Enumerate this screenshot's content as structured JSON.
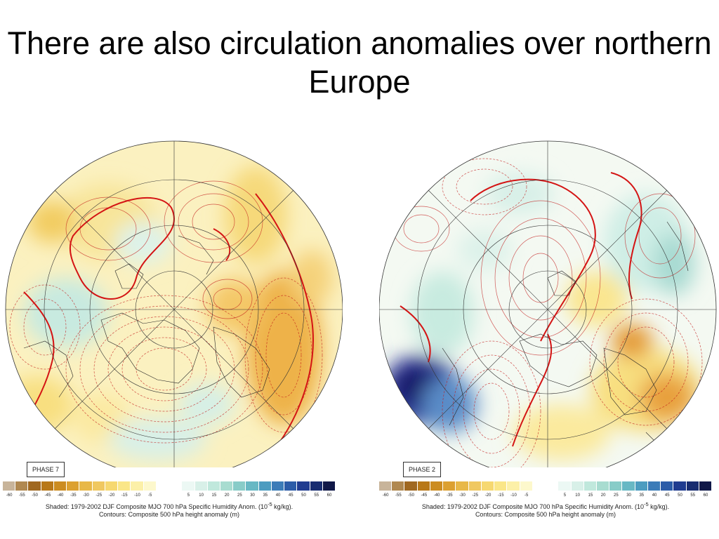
{
  "slide": {
    "title": "There are also circulation anomalies over northern Europe"
  },
  "colors": {
    "background": "#ffffff",
    "contour_line": "#c21818",
    "zero_contour": "#d41414",
    "coastline": "#222222",
    "graticule": "#333333"
  },
  "colorbar": {
    "tick_labels": [
      "-60",
      "-55",
      "-50",
      "-45",
      "-40",
      "-35",
      "-30",
      "-25",
      "-20",
      "-15",
      "-10",
      "-5",
      "",
      "",
      "5",
      "10",
      "15",
      "20",
      "25",
      "30",
      "35",
      "40",
      "45",
      "50",
      "55",
      "60"
    ],
    "swatch_colors": [
      "#c8b49a",
      "#b08850",
      "#a06820",
      "#b87818",
      "#cc8c20",
      "#dca030",
      "#e8b848",
      "#f0c860",
      "#f6d870",
      "#fae688",
      "#fcf0a8",
      "#fdf8cc",
      "#ffffff",
      "#ffffff",
      "#ecf8f4",
      "#d8f0e8",
      "#c0e8dc",
      "#a8dcd0",
      "#88ccc8",
      "#68b8c4",
      "#4c9cc0",
      "#3c7cb8",
      "#2c5ca8",
      "#203c90",
      "#182c70",
      "#101848"
    ]
  },
  "panels": [
    {
      "phase_label": "PHASE 7",
      "caption_line1": "Shaded: 1979-2002 DJF Composite MJO 700 hPa Specific Humidity Anom. (10",
      "caption_exp": "-5",
      "caption_line1_end": " kg/kg).",
      "caption_line2": "Contours: Composite 500 hPa height anomaly (m)"
    },
    {
      "phase_label": "PHASE 2",
      "caption_line1": "Shaded: 1979-2002 DJF Composite MJO 700 hPa Specific Humidity Anom. (10",
      "caption_exp": "-5",
      "caption_line1_end": " kg/kg).",
      "caption_line2": "Contours: Composite 500 hPa height anomaly (m)"
    }
  ]
}
